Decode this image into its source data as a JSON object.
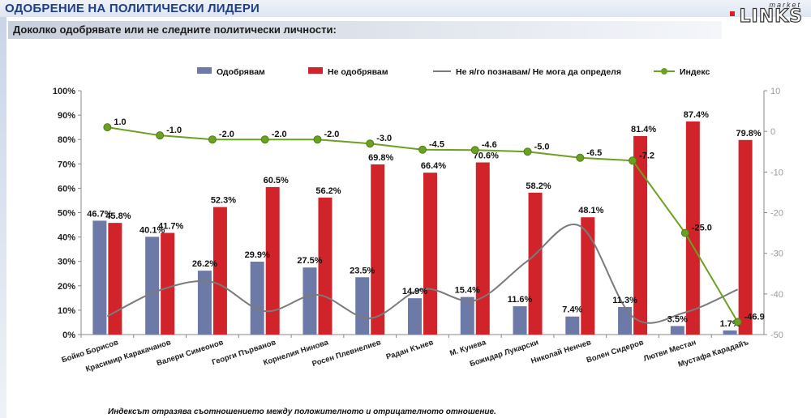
{
  "header": {
    "title": "ОДОБРЕНИЕ НА ПОЛИТИЧЕСКИ ЛИДЕРИ",
    "logo_small": "market",
    "logo_big": "LINKS"
  },
  "question": "Доколко одобрявате или не следните политически личности:",
  "note": "Индексът отразява съотношението между положителното и отрицателното отношение.",
  "colors": {
    "approve": "#6d7aa7",
    "disapprove": "#d1242a",
    "unknown": "#7b7b7b",
    "index": "#6aa121"
  },
  "chart_data": {
    "type": "bar",
    "categories": [
      "Бойко Борисов",
      "Красимир Каракачанов",
      "Валери Симеонов",
      "Георги Първанов",
      "Корнелия Нинова",
      "Росен Плевнелиев",
      "Радан Кънев",
      "М. Кунева",
      "Божидар Лукарски",
      "Николай Ненчев",
      "Волен Сидеров",
      "Лютви Местан",
      "Мустафа Карадайъ"
    ],
    "series": [
      {
        "name": "Одобрявам",
        "kind": "bar",
        "axis": "left",
        "values": [
          46.7,
          40.1,
          26.2,
          29.9,
          27.5,
          23.5,
          14.9,
          15.4,
          11.6,
          7.4,
          11.3,
          3.5,
          1.7
        ],
        "labels": [
          "46.7%",
          "40.1%",
          "26.2%",
          "29.9%",
          "27.5%",
          "23.5%",
          "14.9%",
          "15.4%",
          "11.6%",
          "7.4%",
          "11.3%",
          "3.5%",
          "1.7%"
        ]
      },
      {
        "name": "Не одобрявам",
        "kind": "bar",
        "axis": "left",
        "values": [
          45.8,
          41.7,
          52.3,
          60.5,
          56.2,
          69.8,
          66.4,
          70.6,
          58.2,
          48.1,
          81.4,
          87.4,
          79.8
        ],
        "labels": [
          "45.8%",
          "41.7%",
          "52.3%",
          "60.5%",
          "56.2%",
          "69.8%",
          "66.4%",
          "70.6%",
          "58.2%",
          "48.1%",
          "81.4%",
          "87.4%",
          "79.8%"
        ]
      },
      {
        "name": "Не я/го познавам/ Не мога да определя",
        "kind": "line",
        "axis": "left",
        "values": [
          7.5,
          18.2,
          21.5,
          9.6,
          16.3,
          6.7,
          18.7,
          14.0,
          30.2,
          44.5,
          7.3,
          9.1,
          18.5
        ]
      },
      {
        "name": "Индекс",
        "kind": "line",
        "axis": "right",
        "values": [
          1.0,
          -1.0,
          -2.0,
          -2.0,
          -2.0,
          -3.0,
          -4.5,
          -4.6,
          -5.0,
          -6.5,
          -7.2,
          -25.0,
          -46.9
        ],
        "labels": [
          "1.0",
          "-1.0",
          "-2.0",
          "-2.0",
          "-2.0",
          "-3.0",
          "-4.5",
          "-4.6",
          "-5.0",
          "-6.5",
          "-7.2",
          "-25.0",
          "-46.9"
        ]
      }
    ],
    "y_left": {
      "min": 0,
      "max": 100,
      "ticks": [
        "0%",
        "10%",
        "20%",
        "30%",
        "40%",
        "50%",
        "60%",
        "70%",
        "80%",
        "90%",
        "100%"
      ]
    },
    "y_right": {
      "min": -50,
      "max": 10,
      "ticks": [
        "10",
        "0",
        "-10",
        "-20",
        "-30",
        "-40",
        "-50"
      ]
    },
    "legend": [
      "Одобрявам",
      "Не одобрявам",
      "Не я/го познавам/ Не мога да определя",
      "Индекс"
    ],
    "legend_position": "top"
  }
}
